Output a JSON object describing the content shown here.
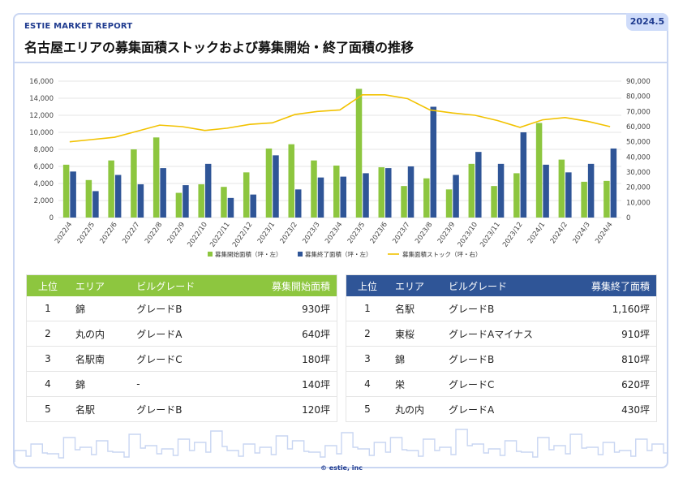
{
  "header": {
    "brand": "ESTIE MARKET REPORT",
    "date": "2024.5",
    "title": "名古屋エリアの募集面積ストックおよび募集開始・終了面積の推移"
  },
  "colors": {
    "green": "#8dc63f",
    "blue": "#2f5597",
    "line": "#f2c200"
  },
  "chart_data": {
    "type": "bar",
    "categories": [
      "2022/4",
      "2022/5",
      "2022/6",
      "2022/7",
      "2022/8",
      "2022/9",
      "2022/10",
      "2022/11",
      "2022/12",
      "2023/1",
      "2023/2",
      "2023/3",
      "2023/4",
      "2023/5",
      "2023/6",
      "2023/7",
      "2023/8",
      "2023/9",
      "2023/10",
      "2023/11",
      "2023/12",
      "2024/1",
      "2024/2",
      "2024/3",
      "2024/4"
    ],
    "series": [
      {
        "name": "募集開始面積（坪・左）",
        "type": "bar",
        "axis": "left",
        "color": "#8dc63f",
        "values": [
          6200,
          4400,
          6700,
          8000,
          9400,
          2900,
          3900,
          3600,
          5300,
          8100,
          8600,
          6700,
          6100,
          15100,
          5900,
          3700,
          4600,
          3300,
          6300,
          3700,
          5200,
          11100,
          6800,
          4200,
          4300
        ]
      },
      {
        "name": "募集終了面積（坪・左）",
        "type": "bar",
        "axis": "left",
        "color": "#2f5597",
        "values": [
          5400,
          3100,
          5000,
          3900,
          5800,
          3800,
          6300,
          2300,
          2700,
          7300,
          3300,
          4700,
          4800,
          5200,
          5800,
          6000,
          13000,
          5000,
          7700,
          6300,
          10000,
          6200,
          5300,
          6300,
          8100
        ]
      },
      {
        "name": "募集面積ストック（坪・右）",
        "type": "line",
        "axis": "right",
        "color": "#f2c200",
        "values": [
          50000,
          51500,
          53000,
          57000,
          61000,
          60000,
          57500,
          59000,
          61500,
          62500,
          68000,
          70000,
          71000,
          81000,
          81000,
          78500,
          71000,
          69000,
          67500,
          64000,
          59500,
          64500,
          66000,
          63500,
          60000
        ]
      }
    ],
    "yleft": {
      "min": 0,
      "max": 16000,
      "ticks": [
        "0",
        "2,000",
        "4,000",
        "6,000",
        "8,000",
        "10,000",
        "12,000",
        "14,000",
        "16,000"
      ]
    },
    "yright": {
      "min": 0,
      "max": 90000,
      "ticks": [
        "0",
        "10,000",
        "20,000",
        "30,000",
        "40,000",
        "50,000",
        "60,000",
        "70,000",
        "80,000",
        "90,000"
      ]
    },
    "grid": true,
    "legend": "bottom"
  },
  "table_start": {
    "headers": [
      "上位",
      "エリア",
      "ビルグレード",
      "募集開始面積"
    ],
    "rows": [
      [
        "1",
        "錦",
        "グレードB",
        "930坪"
      ],
      [
        "2",
        "丸の内",
        "グレードA",
        "640坪"
      ],
      [
        "3",
        "名駅南",
        "グレードC",
        "180坪"
      ],
      [
        "4",
        "錦",
        "-",
        "140坪"
      ],
      [
        "5",
        "名駅",
        "グレードB",
        "120坪"
      ]
    ]
  },
  "table_end": {
    "headers": [
      "上位",
      "エリア",
      "ビルグレード",
      "募集終了面積"
    ],
    "rows": [
      [
        "1",
        "名駅",
        "グレードB",
        "1,160坪"
      ],
      [
        "2",
        "東桜",
        "グレードAマイナス",
        "910坪"
      ],
      [
        "3",
        "錦",
        "グレードB",
        "810坪"
      ],
      [
        "4",
        "栄",
        "グレードC",
        "620坪"
      ],
      [
        "5",
        "丸の内",
        "グレードA",
        "430坪"
      ]
    ]
  },
  "footer": {
    "copyright": "© estie, inc"
  }
}
